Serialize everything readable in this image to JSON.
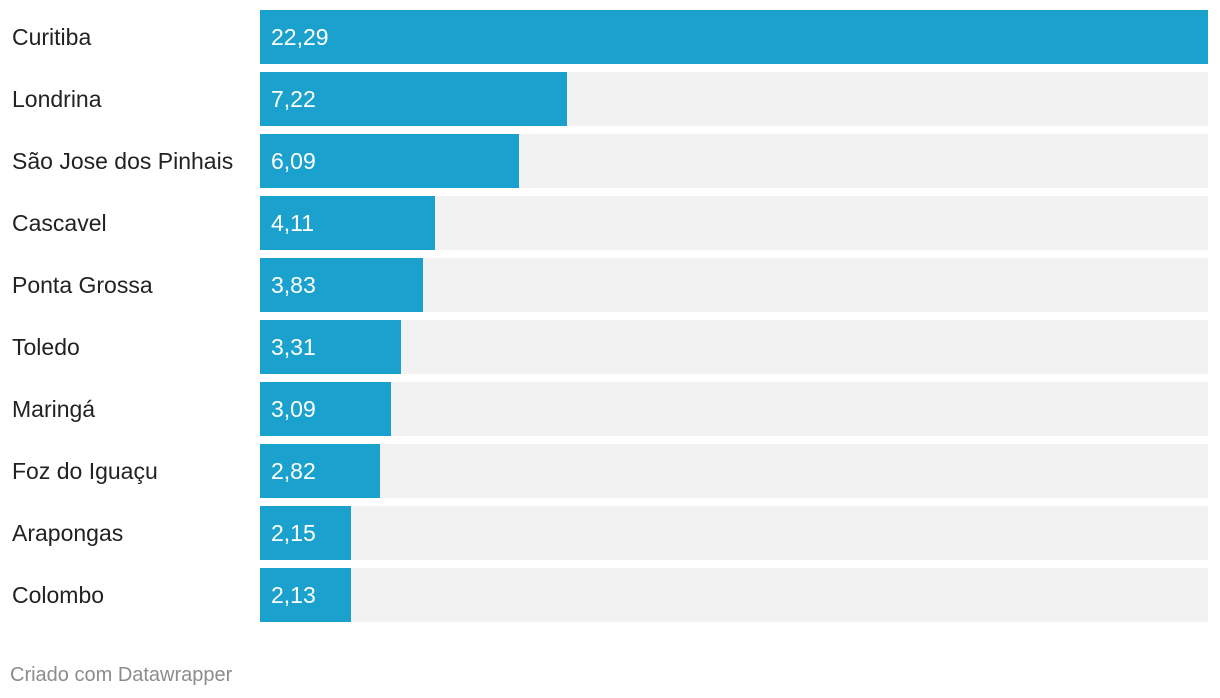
{
  "chart_data": {
    "type": "bar",
    "orientation": "horizontal",
    "categories": [
      "Curitiba",
      "Londrina",
      "São Jose dos Pinhais",
      "Cascavel",
      "Ponta Grossa",
      "Toledo",
      "Maringá",
      "Foz do Iguaçu",
      "Arapongas",
      "Colombo"
    ],
    "values": [
      22.29,
      7.22,
      6.09,
      4.11,
      3.83,
      3.31,
      3.09,
      2.82,
      2.15,
      2.13
    ],
    "value_labels": [
      "22,29",
      "7,22",
      "6,09",
      "4,11",
      "3,83",
      "3,31",
      "3,09",
      "2,82",
      "2,15",
      "2,13"
    ],
    "xlim": [
      0,
      22.29
    ],
    "title": "",
    "xlabel": "",
    "ylabel": "",
    "grid": false,
    "colors": {
      "bar": "#1aa1cd",
      "track": "#f2f2f2",
      "label": "#222222",
      "value_label": "#ffffff"
    }
  },
  "footer": {
    "credit": "Criado com Datawrapper"
  }
}
